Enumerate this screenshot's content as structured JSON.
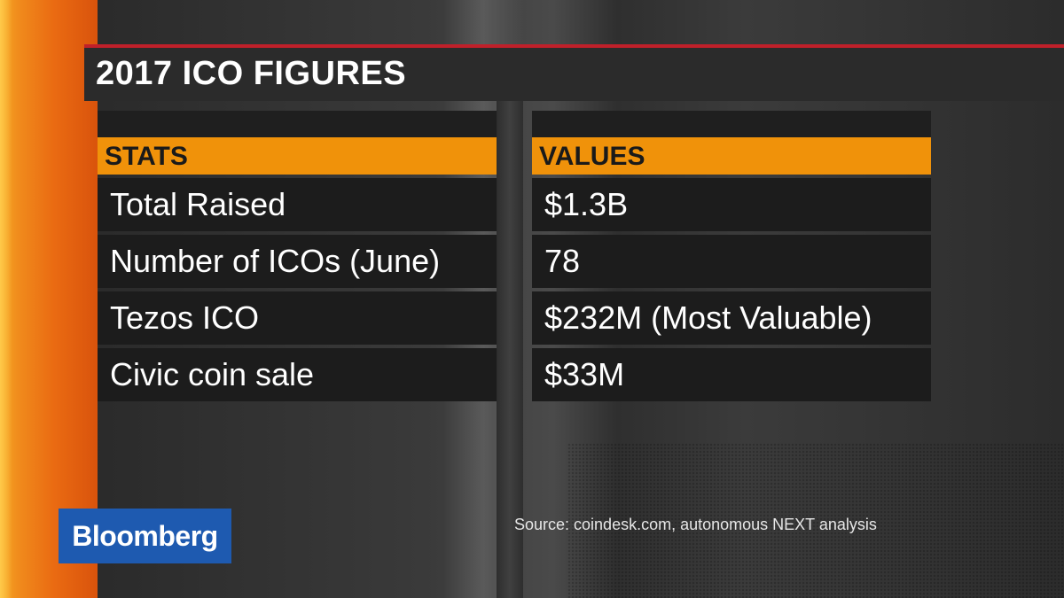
{
  "title": "2017 ICO FIGURES",
  "table": {
    "headers": {
      "stats": "STATS",
      "values": "VALUES"
    },
    "rows": [
      {
        "stat": "Total Raised",
        "value": "$1.3B"
      },
      {
        "stat": "Number of ICOs (June)",
        "value": "78"
      },
      {
        "stat": "Tezos ICO",
        "value": "$232M (Most Valuable)"
      },
      {
        "stat": "Civic coin sale",
        "value": "$33M"
      }
    ]
  },
  "logo": "Bloomberg",
  "source": "Source: coindesk.com, autonomous NEXT analysis",
  "colors": {
    "accent_orange": "#f0920a",
    "title_rule_red": "#c0202a",
    "logo_blue": "#1e5ab0"
  }
}
